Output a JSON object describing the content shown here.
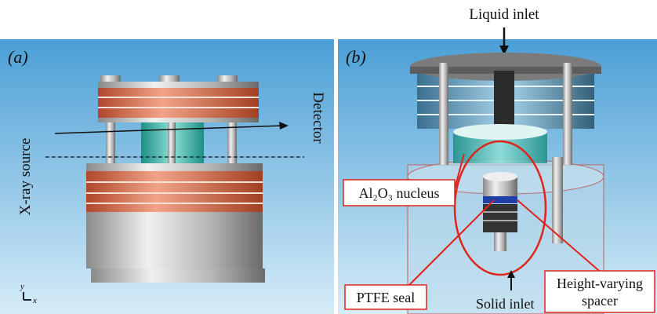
{
  "panel_a": {
    "label": "(a)",
    "source_label": "X-ray source",
    "detector_label": "Detector",
    "axis_y": "y",
    "axis_x": "x"
  },
  "panel_b": {
    "label": "(b)",
    "liquid_inlet": "Liquid inlet",
    "nucleus_label": "Al₂O₃ nucleus",
    "seal_label": "PTFE seal",
    "solid_inlet": "Solid inlet",
    "spacer_label": [
      "Height-varying",
      "spacer"
    ]
  }
}
